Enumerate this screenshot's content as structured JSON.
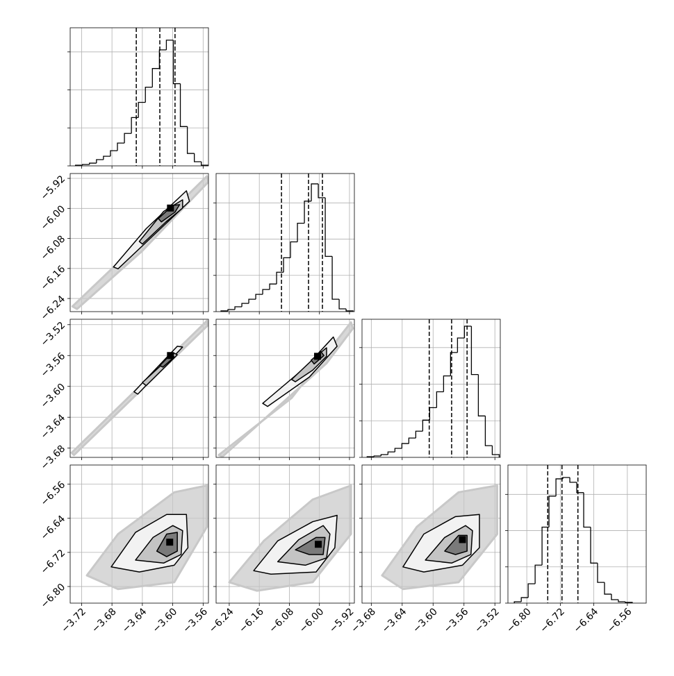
{
  "chart_data": [
    {
      "type": "histogram",
      "bins": [
        -3.728,
        -3.7188,
        -3.7096,
        -3.7004,
        -3.6912,
        -3.682,
        -3.6728,
        -3.6636,
        -3.6544,
        -3.6452,
        -3.636,
        -3.6268,
        -3.6176,
        -3.6084,
        -3.5992,
        -3.59,
        -3.5808,
        -3.5716,
        -3.5624,
        -3.5532
      ],
      "values": [
        9,
        18,
        36,
        82,
        127,
        200,
        300,
        427,
        636,
        836,
        1036,
        1282,
        1527,
        1655,
        1082,
        518,
        164,
        55,
        9
      ],
      "quantiles": [
        -3.648,
        -3.617,
        -3.597
      ],
      "color": "#000000",
      "xlim": [
        -3.735,
        -3.553
      ],
      "xticks": [
        -3.72,
        -3.68,
        -3.64,
        -3.6,
        -3.56
      ],
      "ylim": [
        0,
        1818
      ],
      "yticks": [
        0,
        500,
        1000,
        1500
      ],
      "grid": true
    },
    {
      "type": "density",
      "cloud": {
        "x": [
          -3.732,
          -3.644,
          -3.555,
          -3.553,
          -3.64,
          -3.726
        ],
        "y": [
          -6.261,
          -6.091,
          -5.914,
          -5.929,
          -6.113,
          -6.268
        ]
      },
      "contours": [
        {
          "x": [
            -3.678,
            -3.635,
            -3.582,
            -3.578,
            -3.626,
            -3.672
          ],
          "y": [
            -6.156,
            -6.054,
            -5.953,
            -5.981,
            -6.073,
            -6.161
          ]
        },
        {
          "x": [
            -3.644,
            -3.612,
            -3.587,
            -3.587,
            -3.609,
            -3.64
          ],
          "y": [
            -6.088,
            -6.008,
            -5.977,
            -5.999,
            -6.036,
            -6.095
          ]
        },
        {
          "x": [
            -3.619,
            -3.6,
            -3.591,
            -3.597,
            -3.615
          ],
          "y": [
            -6.027,
            -5.992,
            -5.99,
            -6.01,
            -6.036
          ]
        }
      ],
      "peak": {
        "x": -3.603,
        "y": -5.999
      },
      "cloud_color": "#c8c8c8",
      "contour_fills": [
        "#f2f2f2",
        "#c4c4c4",
        "#7a7a7a"
      ],
      "color": "#000000",
      "xlim": [
        -3.735,
        -3.553
      ],
      "xticks": [
        -3.72,
        -3.68,
        -3.64,
        -3.6,
        -3.56
      ],
      "ylim": [
        -6.275,
        -5.907
      ],
      "yticks": [
        {
          "value": -6.24,
          "label": "−6.24"
        },
        {
          "value": -6.16,
          "label": "−6.16"
        },
        {
          "value": -6.08,
          "label": "−6.08"
        },
        {
          "value": -6.0,
          "label": "−6.00"
        },
        {
          "value": -5.92,
          "label": "−5.92"
        }
      ],
      "grid": true
    },
    {
      "type": "histogram",
      "bins": [
        -6.262,
        -6.2435,
        -6.225,
        -6.2065,
        -6.188,
        -6.1695,
        -6.151,
        -6.1325,
        -6.114,
        -6.0955,
        -6.077,
        -6.0585,
        -6.04,
        -6.0215,
        -6.003,
        -5.9845,
        -5.966,
        -5.9475,
        -5.929,
        -5.9105
      ],
      "values": [
        10,
        29,
        67,
        114,
        171,
        238,
        305,
        381,
        543,
        743,
        962,
        1219,
        1524,
        1762,
        1571,
        762,
        171,
        38,
        10
      ],
      "quantiles": [
        -6.101,
        -6.029,
        -5.992
      ],
      "color": "#000000",
      "xlim": [
        -6.275,
        -5.907
      ],
      "xticks": [
        -6.24,
        -6.16,
        -6.08,
        -6.0,
        -5.92
      ],
      "ylim": [
        0,
        1905
      ],
      "yticks": [
        0,
        500,
        1000,
        1500
      ],
      "grid": true
    },
    {
      "type": "density",
      "cloud": {
        "x": [
          -3.733,
          -3.555,
          -3.554,
          -3.73
        ],
        "y": [
          -3.686,
          -3.515,
          -3.521,
          -3.689
        ]
      },
      "contours": [
        {
          "x": [
            -3.651,
            -3.594,
            -3.587,
            -3.646
          ],
          "y": [
            -3.607,
            -3.548,
            -3.549,
            -3.61
          ]
        },
        {
          "x": [
            -3.64,
            -3.598,
            -3.594,
            -3.635
          ],
          "y": [
            -3.595,
            -3.557,
            -3.559,
            -3.599
          ]
        },
        {
          "x": [
            -3.617,
            -3.602,
            -3.598,
            -3.613
          ],
          "y": [
            -3.573,
            -3.558,
            -3.562,
            -3.575
          ]
        }
      ],
      "peak": {
        "x": -3.603,
        "y": -3.56
      },
      "cloud_color": "#c8c8c8",
      "contour_fills": [
        "#f2f2f2",
        "#c4c4c4",
        "#7a7a7a"
      ],
      "color": "#000000",
      "xlim": [
        -3.735,
        -3.553
      ],
      "xticks": [
        -3.72,
        -3.68,
        -3.64,
        -3.6,
        -3.56
      ],
      "ylim": [
        -3.692,
        -3.513
      ],
      "yticks": [
        {
          "value": -3.68,
          "label": "−3.68"
        },
        {
          "value": -3.64,
          "label": "−3.64"
        },
        {
          "value": -3.6,
          "label": "−3.60"
        },
        {
          "value": -3.56,
          "label": "−3.56"
        },
        {
          "value": -3.52,
          "label": "−3.52"
        }
      ],
      "grid": true
    },
    {
      "type": "density",
      "cloud": {
        "x": [
          -6.268,
          -6.074,
          -5.916,
          -5.911,
          -5.981,
          -6.258
        ],
        "y": [
          -3.689,
          -3.615,
          -3.517,
          -3.525,
          -3.57,
          -3.691
        ]
      },
      "contours": [
        {
          "x": [
            -6.151,
            -6.037,
            -5.963,
            -5.953,
            -6.027,
            -6.138
          ],
          "y": [
            -3.622,
            -3.575,
            -3.536,
            -3.548,
            -3.588,
            -3.626
          ]
        },
        {
          "x": [
            -6.074,
            -6.009,
            -5.981,
            -5.981,
            -6.018,
            -6.064
          ],
          "y": [
            -3.591,
            -3.561,
            -3.55,
            -3.561,
            -3.579,
            -3.594
          ]
        },
        {
          "x": [
            -6.022,
            -5.996,
            -5.988,
            -6.014
          ],
          "y": [
            -3.566,
            -3.555,
            -3.56,
            -3.571
          ]
        }
      ],
      "peak": {
        "x": -6.005,
        "y": -3.561
      },
      "cloud_color": "#c8c8c8",
      "contour_fills": [
        "#f2f2f2",
        "#c4c4c4",
        "#7a7a7a"
      ],
      "color": "#000000",
      "xlim": [
        -6.275,
        -5.907
      ],
      "xticks": [
        -6.24,
        -6.16,
        -6.08,
        -6.0,
        -5.92
      ],
      "ylim": [
        -3.692,
        -3.513
      ],
      "yticks": [
        -3.68,
        -3.64,
        -3.6,
        -3.56,
        -3.52
      ],
      "grid": true
    },
    {
      "type": "histogram",
      "bins": [
        -3.6854,
        -3.6764,
        -3.6674,
        -3.6584,
        -3.6494,
        -3.6404,
        -3.6314,
        -3.6224,
        -3.6134,
        -3.6044,
        -3.5954,
        -3.5864,
        -3.5774,
        -3.5684,
        -3.5594,
        -3.5504,
        -3.5414,
        -3.5324,
        -3.5234,
        -3.5144
      ],
      "values": [
        9,
        19,
        38,
        75,
        123,
        189,
        264,
        358,
        509,
        679,
        896,
        1113,
        1433,
        1631,
        1792,
        1132,
        566,
        160,
        38
      ],
      "quantiles": [
        -3.605,
        -3.576,
        -3.556
      ],
      "color": "#000000",
      "xlim": [
        -3.692,
        -3.513
      ],
      "xticks": [
        -3.68,
        -3.64,
        -3.6,
        -3.56,
        -3.52
      ],
      "ylim": [
        0,
        1887
      ],
      "yticks": [
        0,
        500,
        1000,
        1500
      ],
      "grid": true
    },
    {
      "type": "density",
      "cloud": {
        "x": [
          -3.713,
          -3.672,
          -3.598,
          -3.555,
          -3.555,
          -3.598,
          -3.672
        ],
        "y": [
          -6.774,
          -6.677,
          -6.579,
          -6.563,
          -6.66,
          -6.79,
          -6.806
        ]
      },
      "contours": [
        {
          "x": [
            -3.681,
            -3.649,
            -3.608,
            -3.582,
            -3.58,
            -3.598,
            -3.644
          ],
          "y": [
            -6.754,
            -6.673,
            -6.631,
            -6.631,
            -6.709,
            -6.75,
            -6.766
          ]
        },
        {
          "x": [
            -3.649,
            -3.626,
            -3.6,
            -3.587,
            -3.589,
            -3.612
          ],
          "y": [
            -6.738,
            -6.685,
            -6.657,
            -6.669,
            -6.725,
            -6.745
          ]
        },
        {
          "x": [
            -3.621,
            -3.608,
            -3.594,
            -3.594,
            -3.608
          ],
          "y": [
            -6.717,
            -6.677,
            -6.673,
            -6.717,
            -6.73
          ]
        }
      ],
      "peak": {
        "x": -3.604,
        "y": -6.696
      },
      "cloud_color": "#c8c8c8",
      "contour_fills": [
        "#f2f2f2",
        "#c4c4c4",
        "#7a7a7a"
      ],
      "color": "#000000",
      "xlim": [
        -3.735,
        -3.553
      ],
      "xticks": [
        {
          "value": -3.72,
          "label": "−3.72"
        },
        {
          "value": -3.68,
          "label": "−3.68"
        },
        {
          "value": -3.64,
          "label": "−3.64"
        },
        {
          "value": -3.6,
          "label": "−3.60"
        },
        {
          "value": -3.56,
          "label": "−3.56"
        }
      ],
      "ylim": [
        -6.839,
        -6.515
      ],
      "yticks": [
        {
          "value": -6.8,
          "label": "−6.80"
        },
        {
          "value": -6.72,
          "label": "−6.72"
        },
        {
          "value": -6.64,
          "label": "−6.64"
        },
        {
          "value": -6.56,
          "label": "−6.56"
        }
      ],
      "grid": true
    },
    {
      "type": "density",
      "cloud": {
        "x": [
          -6.24,
          -6.148,
          -6.018,
          -5.916,
          -5.916,
          -6.018,
          -6.166
        ],
        "y": [
          -6.79,
          -6.693,
          -6.596,
          -6.563,
          -6.677,
          -6.79,
          -6.81
        ]
      },
      "contours": [
        {
          "x": [
            -6.175,
            -6.111,
            -6.018,
            -5.953,
            -5.959,
            -6.009,
            -6.129
          ],
          "y": [
            -6.763,
            -6.693,
            -6.648,
            -6.633,
            -6.709,
            -6.766,
            -6.771
          ]
        },
        {
          "x": [
            -6.111,
            -6.055,
            -5.99,
            -5.972,
            -5.981,
            -6.037
          ],
          "y": [
            -6.742,
            -6.69,
            -6.657,
            -6.677,
            -6.733,
            -6.75
          ]
        },
        {
          "x": [
            -6.064,
            -6.009,
            -5.985,
            -5.99,
            -6.027
          ],
          "y": [
            -6.714,
            -6.685,
            -6.685,
            -6.725,
            -6.725
          ]
        }
      ],
      "peak": {
        "x": -6.003,
        "y": -6.701
      },
      "cloud_color": "#c8c8c8",
      "contour_fills": [
        "#f2f2f2",
        "#c4c4c4",
        "#7a7a7a"
      ],
      "color": "#000000",
      "xlim": [
        -6.275,
        -5.907
      ],
      "xticks": [
        {
          "value": -6.24,
          "label": "−6.24"
        },
        {
          "value": -6.16,
          "label": "−6.16"
        },
        {
          "value": -6.08,
          "label": "−6.08"
        },
        {
          "value": -6.0,
          "label": "−6.00"
        },
        {
          "value": -5.92,
          "label": "−5.92"
        }
      ],
      "ylim": [
        -6.839,
        -6.515
      ],
      "yticks": [
        -6.8,
        -6.72,
        -6.64,
        -6.56
      ],
      "grid": true
    },
    {
      "type": "density",
      "cloud": {
        "x": [
          -3.666,
          -3.621,
          -3.567,
          -3.517,
          -3.517,
          -3.567,
          -3.639
        ],
        "y": [
          -6.774,
          -6.66,
          -6.579,
          -6.563,
          -6.677,
          -6.79,
          -6.806
        ]
      },
      "contours": [
        {
          "x": [
            -3.639,
            -3.612,
            -3.571,
            -3.54,
            -3.54,
            -3.562,
            -3.612
          ],
          "y": [
            -6.754,
            -6.677,
            -6.636,
            -6.631,
            -6.709,
            -6.75,
            -6.766
          ]
        },
        {
          "x": [
            -3.61,
            -3.585,
            -3.558,
            -3.549,
            -3.551,
            -3.576
          ],
          "y": [
            -6.738,
            -6.685,
            -6.657,
            -6.669,
            -6.725,
            -6.745
          ]
        },
        {
          "x": [
            -3.585,
            -3.567,
            -3.556,
            -3.556,
            -3.571
          ],
          "y": [
            -6.717,
            -6.68,
            -6.68,
            -6.717,
            -6.725
          ]
        }
      ],
      "peak": {
        "x": -3.562,
        "y": -6.69
      },
      "cloud_color": "#c8c8c8",
      "contour_fills": [
        "#f2f2f2",
        "#c4c4c4",
        "#7a7a7a"
      ],
      "color": "#000000",
      "xlim": [
        -3.692,
        -3.513
      ],
      "xticks": [
        {
          "value": -3.68,
          "label": "−3.68"
        },
        {
          "value": -3.64,
          "label": "−3.64"
        },
        {
          "value": -3.6,
          "label": "−3.60"
        },
        {
          "value": -3.56,
          "label": "−3.56"
        },
        {
          "value": -3.52,
          "label": "−3.52"
        }
      ],
      "ylim": [
        -6.839,
        -6.515
      ],
      "yticks": [
        -6.8,
        -6.72,
        -6.64,
        -6.56
      ],
      "grid": true
    },
    {
      "type": "histogram",
      "bins": [
        -6.8298,
        -6.8132,
        -6.7967,
        -6.7801,
        -6.7636,
        -6.747,
        -6.7304,
        -6.7139,
        -6.6973,
        -6.6808,
        -6.6642,
        -6.6476,
        -6.6311,
        -6.6145,
        -6.598,
        -6.5814,
        -6.5648,
        -6.5483
      ],
      "values": [
        19,
        76,
        267,
        524,
        1048,
        1476,
        1714,
        1733,
        1667,
        1524,
        1048,
        552,
        286,
        124,
        48,
        19,
        10
      ],
      "quantiles": [
        -6.75,
        -6.716,
        -6.678
      ],
      "color": "#000000",
      "xlim": [
        -6.845,
        -6.515
      ],
      "xticks": [
        {
          "value": -6.8,
          "label": "−6.80"
        },
        {
          "value": -6.72,
          "label": "−6.72"
        },
        {
          "value": -6.64,
          "label": "−6.64"
        },
        {
          "value": -6.56,
          "label": "−6.56"
        }
      ],
      "ylim": [
        0,
        1905
      ],
      "yticks": [
        0,
        500,
        1000,
        1500
      ],
      "grid": true
    }
  ]
}
